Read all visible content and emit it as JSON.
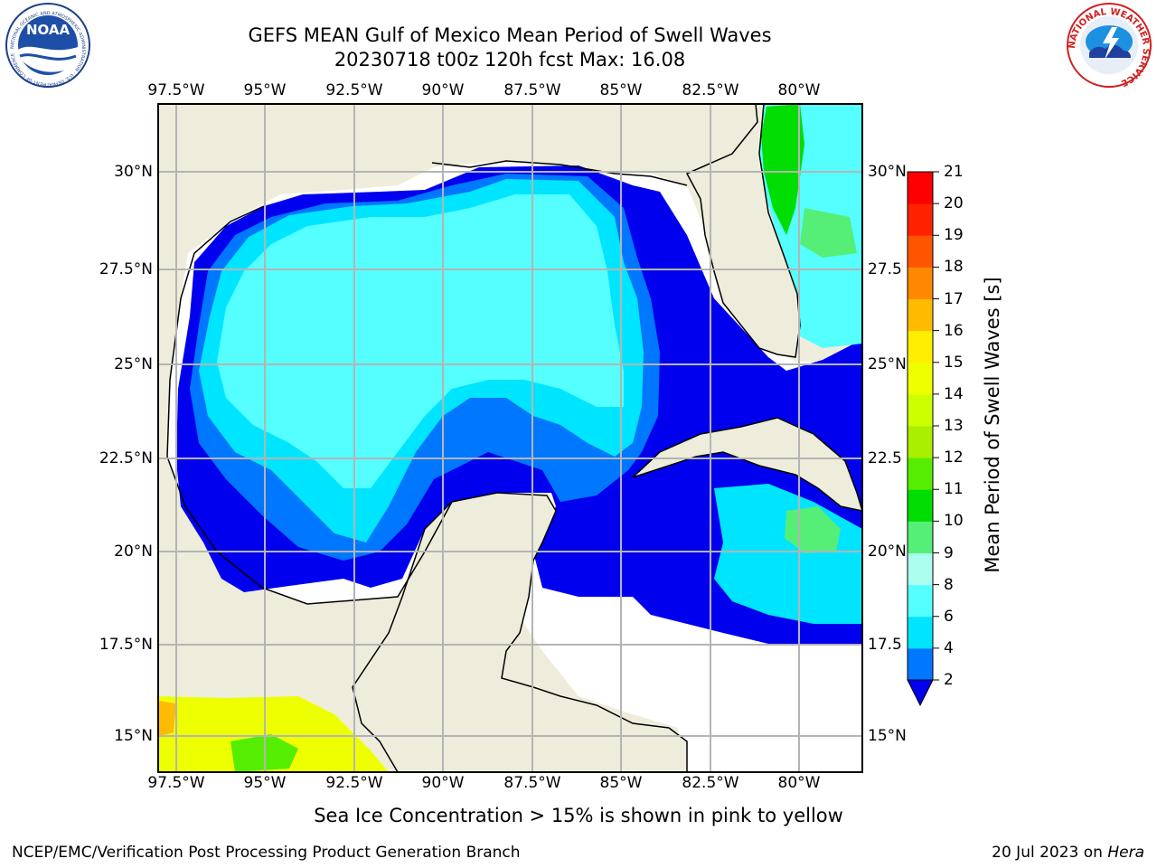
{
  "title_line1": "GEFS MEAN Gulf of Mexico Mean Period of Swell Waves",
  "title_line2": "20230718 t00z 120h fcst   Max: 16.08",
  "logos": {
    "left": "noaa-logo",
    "right": "nws-logo",
    "left_text": "NOAA",
    "left_ring_text": "NATIONAL OCEANIC AND ATMOSPHERIC ADMINISTRATION · U.S. DEPARTMENT OF COMMERCE",
    "right_ring_text": "NATIONAL WEATHER SERVICE"
  },
  "map": {
    "lon_labels": [
      "97.5°W",
      "95°W",
      "92.5°W",
      "90°W",
      "87.5°W",
      "85°W",
      "82.5°W",
      "80°W"
    ],
    "lat_labels": [
      "30°N",
      "27.5°N",
      "25°N",
      "22.5°N",
      "20°N",
      "17.5°N",
      "15°N"
    ],
    "lat_labels_right": [
      "30°N",
      "27.5",
      "25°N",
      "22.5",
      "20°N",
      "17.5",
      "15°N"
    ],
    "colors": {
      "land": "#eeeddc",
      "no_data": "#ffffff",
      "coast": "#000000",
      "grid": "#b4b4b4"
    }
  },
  "colorbar": {
    "label": "Mean Period of Swell Waves [s]",
    "ticks": [
      "2",
      "4",
      "6",
      "8",
      "9",
      "10",
      "11",
      "12",
      "13",
      "14",
      "15",
      "16",
      "17",
      "18",
      "19",
      "20",
      "21"
    ],
    "colors": [
      "#0000ee",
      "#0077ff",
      "#00e5ff",
      "#55ffff",
      "#aaffee",
      "#55ee77",
      "#00dd00",
      "#55ee00",
      "#aaee00",
      "#ccff00",
      "#eeff00",
      "#ffee00",
      "#ffbb00",
      "#ff8800",
      "#ff5500",
      "#ff2200",
      "#ff0000"
    ]
  },
  "footnote": "Sea Ice Concentration > 15% is shown in pink to yellow",
  "credit": "NCEP/EMC/Verification Post Processing Product Generation Branch",
  "stamp_date": "20 Jul 2023 on ",
  "stamp_host": "Hera"
}
